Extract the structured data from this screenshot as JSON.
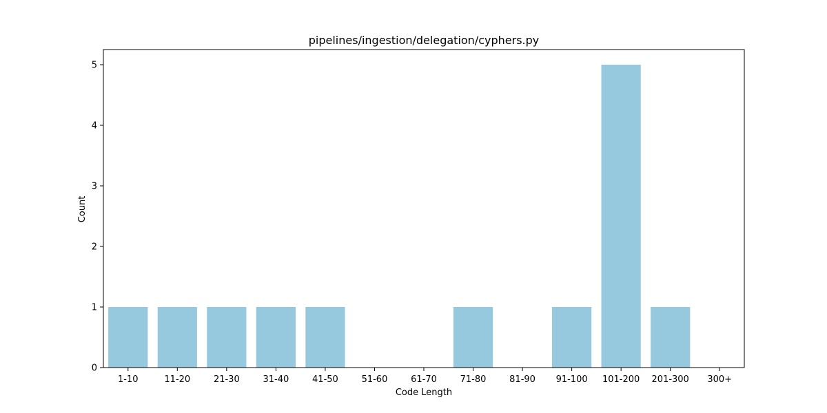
{
  "chart_data": {
    "type": "bar",
    "title": "pipelines/ingestion/delegation/cyphers.py",
    "xlabel": "Code Length",
    "ylabel": "Count",
    "categories": [
      "1-10",
      "11-20",
      "21-30",
      "31-40",
      "41-50",
      "51-60",
      "61-70",
      "71-80",
      "81-90",
      "91-100",
      "101-200",
      "201-300",
      "300+"
    ],
    "values": [
      1,
      1,
      1,
      1,
      1,
      0,
      0,
      1,
      0,
      1,
      5,
      1,
      0
    ],
    "ylim": [
      0,
      5.25
    ],
    "yticks": [
      0,
      1,
      2,
      3,
      4,
      5
    ],
    "bar_color": "#96c9de",
    "grid": false,
    "legend": "none"
  }
}
